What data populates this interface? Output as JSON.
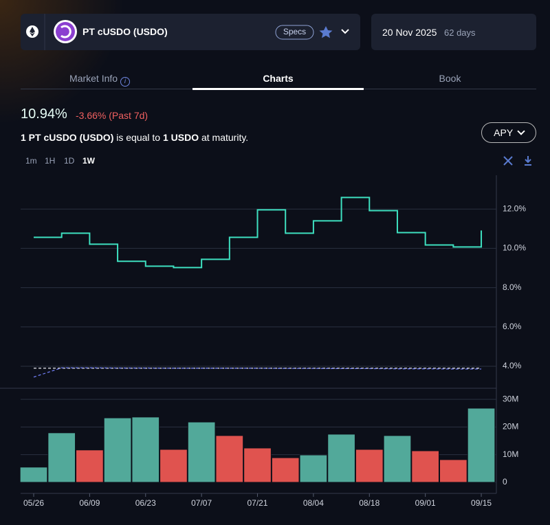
{
  "header": {
    "title": "PT cUSDO (USDO)",
    "specs": "Specs",
    "maturity_date": "20 Nov 2025",
    "days_left": "62 days"
  },
  "tabs": [
    "Market Info",
    "Charts",
    "Book"
  ],
  "summary": {
    "apy": "10.94%",
    "change": "-3.66% (Past 7d)",
    "sentence": [
      "1 PT cUSDO (USDO)",
      "is equal to",
      "1 USDO",
      "at maturity."
    ]
  },
  "metric_button": "APY",
  "timeframes": [
    "1m",
    "1H",
    "1D",
    "1W"
  ],
  "chart_data": [
    {
      "type": "line",
      "step": true,
      "ylim": [
        2.95,
        13.72
      ],
      "yticks": [
        {
          "value": 4,
          "label": "4.0%"
        },
        {
          "value": 6,
          "label": "6.0%"
        },
        {
          "value": 8,
          "label": "8.0%"
        },
        {
          "value": 10,
          "label": "10.0%"
        },
        {
          "value": 12,
          "label": "12.0%"
        }
      ],
      "grid": true,
      "series": [
        {
          "color": "#3ee0c0",
          "step": true,
          "values": [
            10.56,
            10.77,
            10.21,
            9.34,
            9.09,
            9.02,
            9.44,
            10.56,
            11.96,
            10.77,
            11.4,
            12.59,
            11.92,
            10.8,
            10.17,
            10.07,
            10.91
          ]
        },
        {
          "color": "#d8d8e0",
          "dashed": true,
          "values": [
            3.9,
            3.9,
            3.9,
            3.9,
            3.9,
            3.9,
            3.9,
            3.9,
            3.9,
            3.9,
            3.9,
            3.9,
            3.9,
            3.9,
            3.9,
            3.9,
            3.9
          ]
        },
        {
          "color": "#6f7cf0",
          "dashed": true,
          "values": [
            3.45,
            3.92,
            3.92,
            3.91,
            3.91,
            3.9,
            3.9,
            3.9,
            3.9,
            3.89,
            3.89,
            3.88,
            3.88,
            3.87,
            3.87,
            3.86,
            3.86
          ]
        }
      ]
    },
    {
      "type": "bar",
      "categories": [
        "05/26",
        null,
        "06/09",
        null,
        "06/23",
        null,
        "07/07",
        null,
        "07/21",
        null,
        "08/04",
        null,
        "08/18",
        null,
        "09/01",
        null,
        "09/15"
      ],
      "values": [
        5500000,
        17900000,
        11700000,
        23300000,
        23600000,
        11900000,
        21800000,
        16900000,
        12400000,
        8900000,
        9900000,
        17400000,
        11900000,
        16900000,
        11400000,
        8200000,
        26800000
      ],
      "colors": [
        "#52a99a",
        "#52a99a",
        "#e0534f",
        "#52a99a",
        "#52a99a",
        "#e0534f",
        "#52a99a",
        "#e0534f",
        "#e0534f",
        "#e0534f",
        "#52a99a",
        "#52a99a",
        "#e0534f",
        "#52a99a",
        "#e0534f",
        "#e0534f",
        "#52a99a"
      ],
      "ylim": [
        -4000000,
        34000000
      ],
      "yticks": [
        0,
        {
          "value": 10000000,
          "label": "10M"
        },
        {
          "value": 20000000,
          "label": "20M"
        },
        {
          "value": 30000000,
          "label": "30M"
        }
      ],
      "grid": true
    }
  ]
}
